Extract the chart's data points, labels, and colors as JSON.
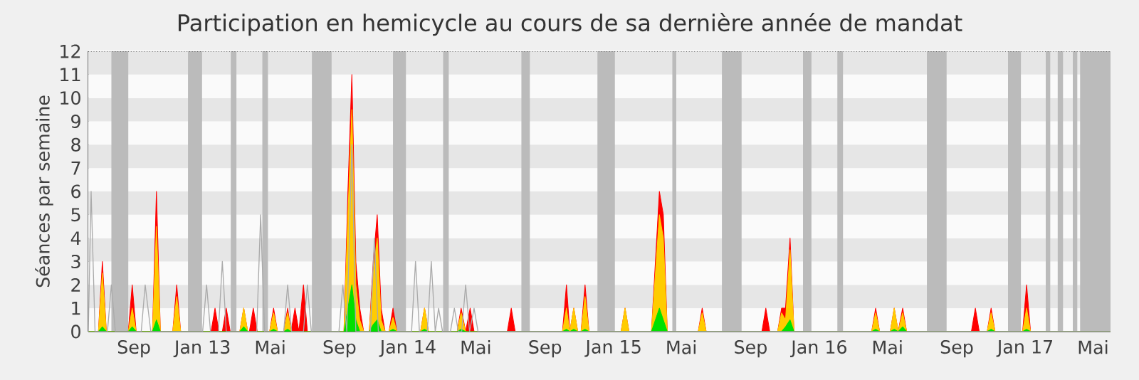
{
  "chart_data": {
    "type": "area",
    "title": "Participation en hemicycle au cours de sa dernière année de mandat",
    "ylabel": "Séances par semaine",
    "x": [
      "2012-06-12",
      "2012-06-30",
      "2012-07-07",
      "2012-07-14",
      "2012-08-22",
      "2012-08-29",
      "2012-09-05",
      "2012-10-04",
      "2012-10-11",
      "2012-10-18",
      "2012-11-09",
      "2012-11-16",
      "2012-11-23",
      "2013-01-16",
      "2013-01-23",
      "2013-01-30",
      "2013-02-05",
      "2013-02-12",
      "2013-02-19",
      "2013-03-08",
      "2013-03-15",
      "2013-03-22",
      "2013-03-25",
      "2013-04-01",
      "2013-04-08",
      "2013-04-30",
      "2013-05-07",
      "2013-05-14",
      "2013-05-25",
      "2013-06-01",
      "2013-06-07",
      "2013-06-14",
      "2013-06-21",
      "2013-06-29",
      "2013-07-06",
      "2013-09-09",
      "2013-09-16",
      "2013-09-23",
      "2013-09-30",
      "2013-10-07",
      "2013-10-14",
      "2013-10-24",
      "2013-10-31",
      "2013-11-07",
      "2013-11-14",
      "2013-11-21",
      "2013-11-28",
      "2013-12-05",
      "2013-12-12",
      "2014-01-23",
      "2014-01-30",
      "2014-02-06",
      "2014-03-29",
      "2014-04-05",
      "2014-04-13",
      "2014-04-21",
      "2014-04-28",
      "2014-06-26",
      "2014-07-03",
      "2014-07-10",
      "2014-10-02",
      "2014-10-09",
      "2014-10-15",
      "2014-10-22",
      "2014-10-29",
      "2014-11-04",
      "2014-11-11",
      "2014-11-18",
      "2015-01-14",
      "2015-01-21",
      "2015-01-28",
      "2015-03-09",
      "2015-03-16",
      "2015-03-23",
      "2015-03-30",
      "2015-04-06",
      "2015-05-31",
      "2015-06-07",
      "2015-06-14",
      "2015-09-21",
      "2015-09-28",
      "2015-10-05",
      "2015-10-19",
      "2015-10-26",
      "2015-11-02",
      "2015-11-10",
      "2015-11-17",
      "2016-04-03",
      "2016-04-10",
      "2016-04-17",
      "2016-05-06",
      "2016-05-13",
      "2016-05-20",
      "2016-05-28",
      "2016-06-04",
      "2016-09-27",
      "2016-10-04",
      "2016-10-11",
      "2016-10-25",
      "2016-11-01",
      "2016-11-08",
      "2016-12-27",
      "2017-01-03",
      "2017-01-10",
      "2017-06-01"
    ],
    "series": [
      {
        "color": "#ff0000",
        "values": [
          0,
          0,
          3,
          0,
          0,
          2,
          0,
          0,
          6,
          0,
          0,
          2,
          0,
          0,
          1,
          0,
          0,
          1,
          0,
          0,
          1,
          0,
          0,
          1,
          0,
          0,
          1,
          0,
          0,
          1,
          0,
          1,
          0,
          2,
          0,
          0,
          6,
          11,
          3,
          1,
          0,
          0,
          3,
          5,
          1,
          0,
          0,
          1,
          0,
          0,
          1,
          0,
          0,
          1,
          0,
          1,
          0,
          0,
          1,
          0,
          0,
          2,
          0,
          1,
          0,
          0,
          2,
          0,
          0,
          1,
          0,
          0,
          3,
          6,
          5,
          0,
          0,
          1,
          0,
          0,
          1,
          0,
          0,
          1,
          1,
          4,
          0,
          0,
          1,
          0,
          0,
          1,
          0,
          1,
          0,
          0,
          1,
          0,
          0,
          1,
          0,
          0,
          2,
          0,
          0
        ]
      },
      {
        "color": "#ffcc00",
        "values": [
          0,
          0,
          2.5,
          0,
          0,
          1,
          0,
          0,
          4.5,
          0,
          0,
          1.5,
          0,
          0,
          0,
          0,
          0,
          0,
          0,
          0,
          1,
          0,
          0,
          0,
          0,
          0,
          0.8,
          0,
          0,
          0.8,
          0,
          0,
          0,
          0,
          0,
          0,
          5,
          9.5,
          2,
          0.5,
          0,
          0,
          2.5,
          4,
          0.5,
          0,
          0,
          0.6,
          0,
          0,
          1,
          0,
          0,
          0.8,
          0,
          0,
          0,
          0,
          0,
          0,
          0,
          1,
          0,
          1,
          0,
          0,
          1.5,
          0,
          0,
          1,
          0,
          0,
          2.5,
          5,
          4,
          0,
          0,
          0.8,
          0,
          0,
          0,
          0,
          0,
          0.8,
          0.5,
          3.5,
          0,
          0,
          0.8,
          0,
          0,
          1,
          0,
          0.8,
          0,
          0,
          0,
          0,
          0,
          0.8,
          0,
          0,
          1,
          0,
          0
        ]
      },
      {
        "color": "#00e000",
        "values": [
          0,
          0,
          0.2,
          0,
          0,
          0.2,
          0,
          0,
          0.5,
          0,
          0,
          0,
          0,
          0,
          0,
          0,
          0,
          0,
          0,
          0,
          0.2,
          0,
          0,
          0,
          0,
          0,
          0.1,
          0,
          0,
          0.1,
          0,
          0,
          0,
          0,
          0,
          0,
          1,
          2,
          0.5,
          0,
          0,
          0,
          0.3,
          0.5,
          0,
          0,
          0,
          0.1,
          0,
          0,
          0.1,
          0,
          0,
          0.1,
          0,
          0,
          0,
          0,
          0,
          0,
          0,
          0.1,
          0,
          0.1,
          0,
          0,
          0.1,
          0,
          0,
          0,
          0,
          0,
          0.5,
          1,
          0.5,
          0,
          0,
          0,
          0,
          0,
          0,
          0,
          0,
          0,
          0.2,
          0.5,
          0,
          0,
          0.1,
          0,
          0,
          0.1,
          0,
          0.2,
          0,
          0,
          0,
          0,
          0,
          0.1,
          0,
          0,
          0.1,
          0,
          0
        ]
      },
      {
        "type": "line",
        "color": "#aaaaaa",
        "x": [
          "2012-06-12",
          "2012-06-17",
          "2012-06-24",
          "2012-07-16",
          "2012-07-23",
          "2012-07-30",
          "2012-09-14",
          "2012-09-21",
          "2012-10-01",
          "2013-01-01",
          "2013-01-08",
          "2013-01-15",
          "2013-01-29",
          "2013-02-05",
          "2013-02-12",
          "2013-04-07",
          "2013-04-14",
          "2013-04-21",
          "2013-05-25",
          "2013-06-01",
          "2013-06-08",
          "2013-06-29",
          "2013-07-06",
          "2013-07-13",
          "2013-08-31",
          "2013-09-07",
          "2013-09-14",
          "2013-09-23",
          "2013-09-30",
          "2013-10-26",
          "2013-11-02",
          "2013-11-09",
          "2014-01-07",
          "2014-01-14",
          "2014-01-21",
          "2014-02-04",
          "2014-02-11",
          "2014-02-18",
          "2014-02-24",
          "2014-03-03",
          "2014-03-17",
          "2014-03-24",
          "2014-03-31",
          "2014-04-06",
          "2014-04-13",
          "2014-04-20",
          "2014-04-28",
          "2014-05-05",
          "2017-06-01"
        ],
        "values": [
          0,
          6,
          0,
          0,
          2,
          0,
          0,
          2,
          0,
          0,
          2,
          0,
          0,
          3,
          0,
          0,
          5,
          0,
          0,
          2,
          0,
          0,
          2,
          0,
          0,
          2,
          0,
          8,
          0,
          0,
          4,
          0,
          0,
          3,
          0,
          0,
          3,
          0,
          1,
          0,
          0,
          1,
          0,
          0,
          2,
          0,
          1,
          0,
          0
        ]
      }
    ],
    "xlim": [
      "2012-06-12",
      "2017-06-01"
    ],
    "xticks": [
      {
        "value": "2012-09-01",
        "label": "Sep"
      },
      {
        "value": "2013-01-01",
        "label": "Jan 13"
      },
      {
        "value": "2013-05-01",
        "label": "Mai"
      },
      {
        "value": "2013-09-01",
        "label": "Sep"
      },
      {
        "value": "2014-01-01",
        "label": "Jan 14"
      },
      {
        "value": "2014-05-01",
        "label": "Mai"
      },
      {
        "value": "2014-09-01",
        "label": "Sep"
      },
      {
        "value": "2015-01-01",
        "label": "Jan 15"
      },
      {
        "value": "2015-05-01",
        "label": "Mai"
      },
      {
        "value": "2015-09-01",
        "label": "Sep"
      },
      {
        "value": "2016-01-01",
        "label": "Jan 16"
      },
      {
        "value": "2016-05-01",
        "label": "Mai"
      },
      {
        "value": "2016-09-01",
        "label": "Sep"
      },
      {
        "value": "2017-01-01",
        "label": "Jan 17"
      },
      {
        "value": "2017-05-01",
        "label": "Mai"
      }
    ],
    "ylim": [
      0,
      12
    ],
    "yticks": [
      0,
      1,
      2,
      3,
      4,
      5,
      6,
      7,
      8,
      9,
      10,
      11,
      12
    ],
    "grid": "y",
    "bands": [
      {
        "axis": "x",
        "from": "2012-07-23",
        "to": "2012-08-22",
        "color": "#bbbbbb"
      },
      {
        "axis": "x",
        "from": "2012-12-06",
        "to": "2012-12-31",
        "color": "#bbbbbb"
      },
      {
        "axis": "x",
        "from": "2013-02-20",
        "to": "2013-03-02",
        "color": "#bbbbbb"
      },
      {
        "axis": "x",
        "from": "2013-04-17",
        "to": "2013-04-27",
        "color": "#bbbbbb"
      },
      {
        "axis": "x",
        "from": "2013-07-14",
        "to": "2013-08-18",
        "color": "#bbbbbb"
      },
      {
        "axis": "x",
        "from": "2013-12-05",
        "to": "2013-12-28",
        "color": "#bbbbbb"
      },
      {
        "axis": "x",
        "from": "2014-03-04",
        "to": "2014-03-14",
        "color": "#bbbbbb"
      },
      {
        "axis": "x",
        "from": "2014-07-21",
        "to": "2014-08-05",
        "color": "#bbbbbb"
      },
      {
        "axis": "x",
        "from": "2014-12-03",
        "to": "2015-01-03",
        "color": "#bbbbbb"
      },
      {
        "axis": "x",
        "from": "2015-04-15",
        "to": "2015-04-22",
        "color": "#bbbbbb"
      },
      {
        "axis": "x",
        "from": "2015-07-12",
        "to": "2015-08-16",
        "color": "#bbbbbb"
      },
      {
        "axis": "x",
        "from": "2015-12-03",
        "to": "2015-12-18",
        "color": "#bbbbbb"
      },
      {
        "axis": "x",
        "from": "2016-02-02",
        "to": "2016-02-12",
        "color": "#bbbbbb"
      },
      {
        "axis": "x",
        "from": "2016-07-10",
        "to": "2016-08-14",
        "color": "#bbbbbb"
      },
      {
        "axis": "x",
        "from": "2016-12-01",
        "to": "2016-12-24",
        "color": "#bbbbbb"
      },
      {
        "axis": "x",
        "from": "2017-02-06",
        "to": "2017-02-14",
        "color": "#bbbbbb"
      },
      {
        "axis": "x",
        "from": "2017-02-27",
        "to": "2017-03-09",
        "color": "#bbbbbb"
      },
      {
        "axis": "x",
        "from": "2017-03-26",
        "to": "2017-04-03",
        "color": "#bbbbbb"
      },
      {
        "axis": "x",
        "from": "2017-04-08",
        "to": "2017-06-01",
        "color": "#bbbbbb"
      }
    ]
  }
}
